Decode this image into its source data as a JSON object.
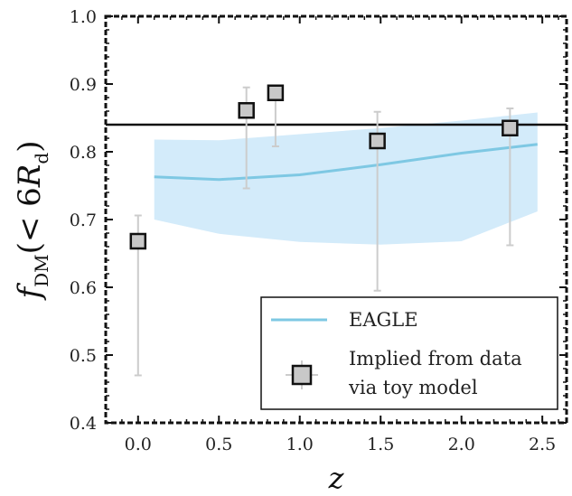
{
  "chart_data": {
    "type": "scatter",
    "xlabel": "z",
    "ylabel_main": "f",
    "ylabel_sub": "DM",
    "ylabel_arg_prefix": "(< 6",
    "ylabel_arg_var": "R",
    "ylabel_arg_sub": "d",
    "ylabel_arg_suffix": ")",
    "xlim": [
      -0.2,
      2.65
    ],
    "ylim": [
      0.4,
      1.0
    ],
    "xticks": [
      0.0,
      0.5,
      1.0,
      1.5,
      2.0,
      2.5
    ],
    "xtick_labels": [
      "0.0",
      "0.5",
      "1.0",
      "1.5",
      "2.0",
      "2.5"
    ],
    "yticks": [
      0.4,
      0.5,
      0.6,
      0.7,
      0.8,
      0.9,
      1.0
    ],
    "ytick_labels": [
      "0.4",
      "0.5",
      "0.6",
      "0.7",
      "0.8",
      "0.9",
      "1.0"
    ],
    "horizontal_line": 0.84,
    "eagle_median": {
      "x": [
        0.1,
        0.5,
        1.0,
        1.5,
        2.0,
        2.47
      ],
      "y": [
        0.763,
        0.759,
        0.766,
        0.781,
        0.798,
        0.811
      ]
    },
    "eagle_band": {
      "x": [
        0.1,
        0.5,
        1.0,
        1.5,
        2.0,
        2.47
      ],
      "upper": [
        0.818,
        0.817,
        0.826,
        0.835,
        0.846,
        0.858
      ],
      "lower": [
        0.7,
        0.679,
        0.667,
        0.663,
        0.668,
        0.712
      ]
    },
    "points": [
      {
        "x": 0.0,
        "y": 0.668,
        "yerr_low": 0.47,
        "yerr_high": 0.706
      },
      {
        "x": 0.67,
        "y": 0.861,
        "yerr_low": 0.746,
        "yerr_high": 0.895
      },
      {
        "x": 0.85,
        "y": 0.887,
        "yerr_low": 0.808,
        "yerr_high": 0.896
      },
      {
        "x": 1.48,
        "y": 0.816,
        "yerr_low": 0.595,
        "yerr_high": 0.859
      },
      {
        "x": 2.3,
        "y": 0.835,
        "yerr_low": 0.662,
        "yerr_high": 0.864
      }
    ],
    "legend": {
      "position": "lower-right",
      "entries": [
        {
          "label": "EAGLE"
        },
        {
          "label_line1": "Implied from data",
          "label_line2": "via toy model"
        }
      ]
    },
    "colors": {
      "eagle_line": "#7ec8e3",
      "eagle_band": "#d3ebfa",
      "hline": "#111111",
      "marker_fill": "#c8c8c8",
      "marker_edge": "#111111",
      "errorbar": "#cccccc",
      "frame": "#111111"
    }
  }
}
